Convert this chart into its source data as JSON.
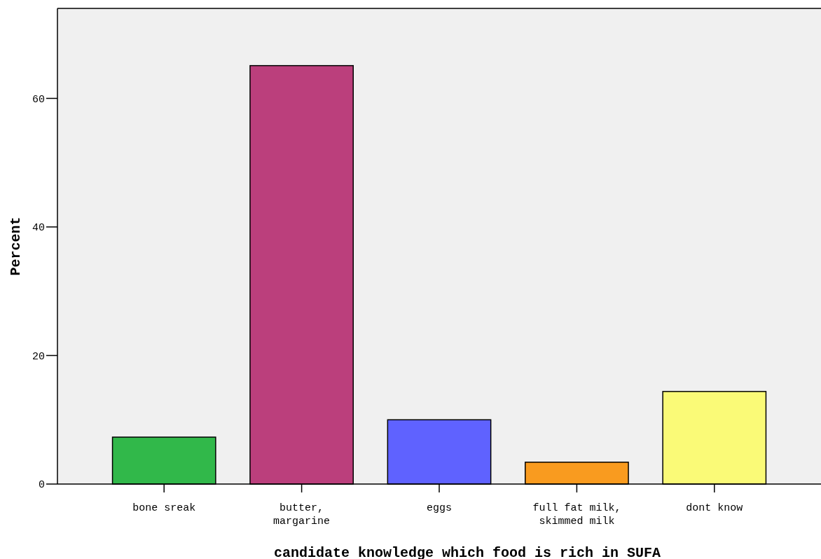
{
  "chart_data": {
    "type": "bar",
    "xlabel": "candidate knowledge which food is rich in SUFA",
    "ylabel": "Percent",
    "categories": [
      "bone sreak",
      "butter, margarine",
      "eggs",
      "full fat milk, skimmed milk",
      "dont know"
    ],
    "values": [
      7.3,
      65.1,
      10.0,
      3.4,
      14.4
    ],
    "colors": [
      "#31b84a",
      "#bb3f7c",
      "#5f62ff",
      "#f99b1f",
      "#fafa77"
    ],
    "ylim": [
      0,
      74
    ],
    "yticks": [
      0,
      20,
      40,
      60
    ],
    "grid": false
  }
}
